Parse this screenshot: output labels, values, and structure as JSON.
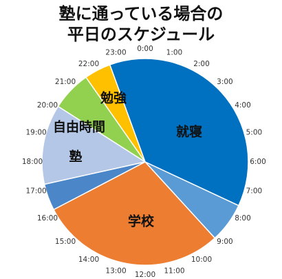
{
  "chart_data": {
    "type": "pie",
    "title": [
      "塾に通っている場合の",
      "平日のスケジュール"
    ],
    "categories": [
      "就寝",
      null,
      "学校",
      null,
      "塾",
      "自由時間",
      "勉強"
    ],
    "values": [
      9,
      1.5,
      7,
      1,
      3,
      1.5,
      1
    ],
    "colors": [
      "#0070c0",
      "#5b9bd5",
      "#ed7d31",
      "#4a86c8",
      "#b4c7e7",
      "#92d050",
      "#ffc000"
    ],
    "hour_labels": [
      "0:00",
      "1:00",
      "2:00",
      "3:00",
      "4:00",
      "5:00",
      "6:00",
      "7:00",
      "8:00",
      "9:00",
      "10:00",
      "11:00",
      "12:00",
      "13:00",
      "14:00",
      "15:00",
      "16:00",
      "17:00",
      "18:00",
      "19:00",
      "20:00",
      "21:00",
      "22:00",
      "23:00"
    ]
  }
}
